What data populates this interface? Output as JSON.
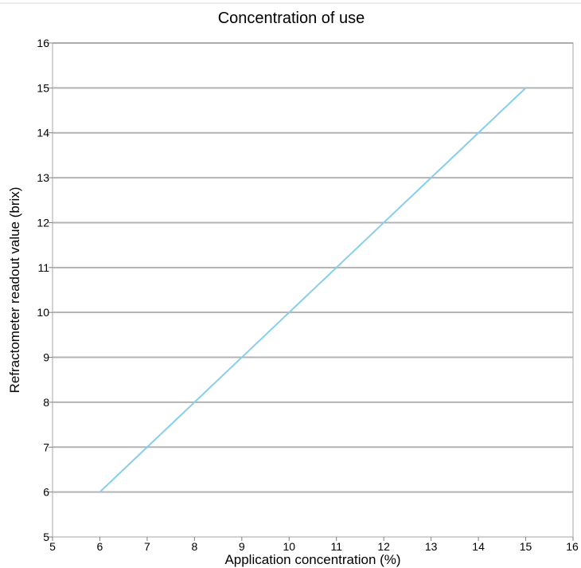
{
  "chart_data": {
    "type": "line",
    "title": "Concentration of use",
    "xlabel": "Application concentration (%)",
    "ylabel": "Refractometer readout value (brix)",
    "xlim": [
      5,
      16
    ],
    "ylim": [
      5,
      16
    ],
    "x_ticks": [
      5,
      6,
      7,
      8,
      9,
      10,
      11,
      12,
      13,
      14,
      15,
      16
    ],
    "y_ticks": [
      5,
      6,
      7,
      8,
      9,
      10,
      11,
      12,
      13,
      14,
      15,
      16
    ],
    "grid": "horizontal",
    "legend": "none",
    "series": [
      {
        "color": "#87ceeb",
        "points": [
          [
            6,
            6
          ],
          [
            7,
            7
          ],
          [
            8,
            8
          ],
          [
            9,
            9
          ],
          [
            10,
            10
          ],
          [
            11,
            11
          ],
          [
            12,
            12
          ],
          [
            13,
            13
          ],
          [
            14,
            14
          ],
          [
            15,
            15
          ]
        ]
      }
    ]
  }
}
